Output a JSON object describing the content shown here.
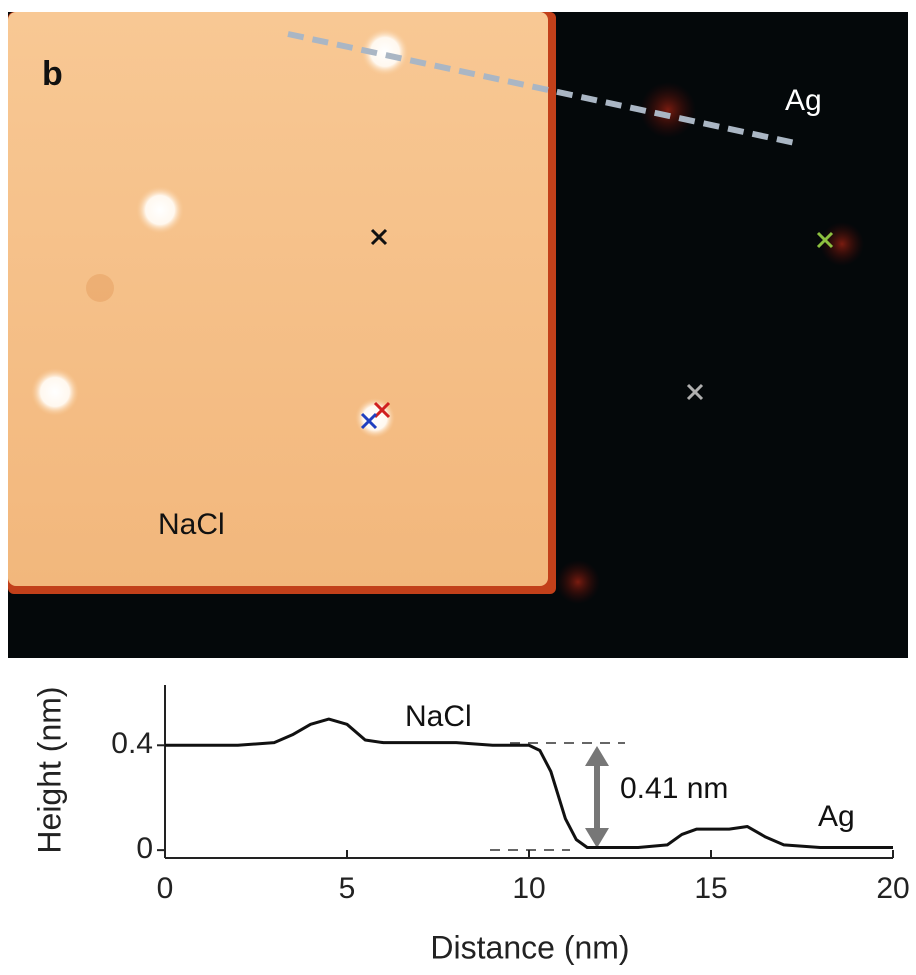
{
  "image": {
    "panel_label": "b",
    "labels": [
      "Ag",
      "NaCl"
    ]
  },
  "chart_data": {
    "type": "line",
    "x_label": "Distance (nm)",
    "y_label": "Height (nm)",
    "annotations": [
      "NaCl",
      "0.41 nm",
      "Ag"
    ],
    "x": [
      0,
      1,
      2,
      3,
      3.5,
      4,
      4.5,
      5,
      5.5,
      6,
      7,
      8,
      9,
      10,
      10.3,
      10.6,
      11,
      11.3,
      11.6,
      12,
      13,
      13.8,
      14.2,
      14.6,
      15,
      15.5,
      16,
      16.5,
      17,
      18,
      19,
      20
    ],
    "values": [
      0.4,
      0.4,
      0.4,
      0.41,
      0.44,
      0.48,
      0.5,
      0.48,
      0.42,
      0.41,
      0.41,
      0.41,
      0.4,
      0.4,
      0.38,
      0.3,
      0.12,
      0.04,
      0.01,
      0.01,
      0.01,
      0.02,
      0.06,
      0.08,
      0.08,
      0.08,
      0.09,
      0.05,
      0.02,
      0.01,
      0.01,
      0.01
    ],
    "color": "#111111",
    "xlim": [
      0,
      20
    ],
    "xticks": [
      0,
      5,
      10,
      15,
      20
    ],
    "ylim": [
      -0.03,
      0.63
    ],
    "yticks": [
      0,
      0.4
    ]
  }
}
